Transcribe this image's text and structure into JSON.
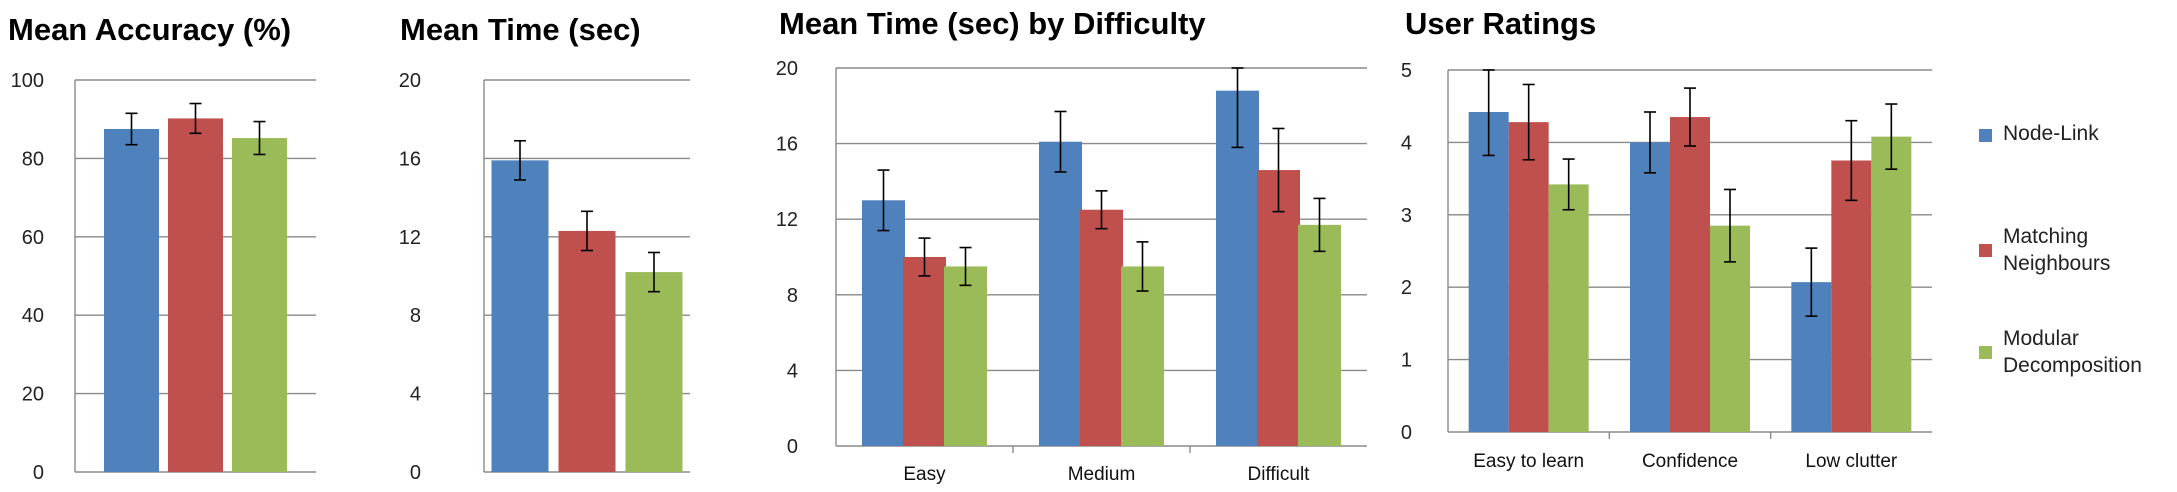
{
  "colors": {
    "node_link": "#4f81bd",
    "matching": "#c0504d",
    "modular": "#9bbb59"
  },
  "legend": {
    "items": [
      {
        "lines": [
          "Node-Link"
        ],
        "color": "#4f81bd"
      },
      {
        "lines": [
          "Matching",
          "Neighbours"
        ],
        "color": "#c0504d"
      },
      {
        "lines": [
          "Modular",
          "Decomposition"
        ],
        "color": "#9bbb59"
      }
    ]
  },
  "chart_data": [
    {
      "type": "bar",
      "title": "Mean Accuracy (%)",
      "ylim": [
        0,
        100
      ],
      "yticks": [
        "0",
        "20",
        "40",
        "60",
        "80",
        "100"
      ],
      "grid": true,
      "categories": [
        ""
      ],
      "series": [
        {
          "name": "Node-Link",
          "values": [
            87.5
          ],
          "errors": [
            4
          ]
        },
        {
          "name": "Matching Neighbours",
          "values": [
            90.2
          ],
          "errors": [
            3.8
          ]
        },
        {
          "name": "Modular Decomposition",
          "values": [
            85.2
          ],
          "errors": [
            4.2
          ]
        }
      ]
    },
    {
      "type": "bar",
      "title": "Mean Time (sec)",
      "ylim": [
        0,
        20
      ],
      "yticks": [
        "0",
        "4",
        "8",
        "12",
        "16",
        "20"
      ],
      "grid": true,
      "categories": [
        ""
      ],
      "series": [
        {
          "name": "Node-Link",
          "values": [
            15.9
          ],
          "errors": [
            1
          ]
        },
        {
          "name": "Matching Neighbours",
          "values": [
            12.3
          ],
          "errors": [
            1
          ]
        },
        {
          "name": "Modular Decomposition",
          "values": [
            10.2
          ],
          "errors": [
            1
          ]
        }
      ]
    },
    {
      "type": "bar",
      "title": "Mean Time (sec) by Difficulty",
      "ylim": [
        0,
        20
      ],
      "yticks": [
        "0",
        "4",
        "8",
        "12",
        "16",
        "20"
      ],
      "grid": true,
      "categories": [
        "Easy",
        "Medium",
        "Difficult"
      ],
      "series": [
        {
          "name": "Node-Link",
          "values": [
            13.0,
            16.1,
            18.8
          ],
          "errors": [
            1.6,
            1.6,
            3.0
          ]
        },
        {
          "name": "Matching Neighbours",
          "values": [
            10.0,
            12.5,
            14.6
          ],
          "errors": [
            1.0,
            1.0,
            2.2
          ]
        },
        {
          "name": "Modular Decomposition",
          "values": [
            9.5,
            9.5,
            11.7
          ],
          "errors": [
            1.0,
            1.3,
            1.4
          ]
        }
      ]
    },
    {
      "type": "bar",
      "title": "User Ratings",
      "ylim": [
        0,
        5
      ],
      "yticks": [
        "0",
        "1",
        "2",
        "3",
        "4",
        "5"
      ],
      "grid": true,
      "legend": "right",
      "categories": [
        "Easy to learn",
        "Confidence",
        "Low clutter"
      ],
      "series": [
        {
          "name": "Node-Link",
          "values": [
            4.42,
            4.0,
            2.07
          ],
          "errors": [
            0.6,
            0.42,
            0.47
          ]
        },
        {
          "name": "Matching Neighbours",
          "values": [
            4.28,
            4.35,
            3.75
          ],
          "errors": [
            0.52,
            0.4,
            0.55
          ]
        },
        {
          "name": "Modular Decomposition",
          "values": [
            3.42,
            2.85,
            4.08
          ],
          "errors": [
            0.35,
            0.5,
            0.45
          ]
        }
      ]
    }
  ]
}
